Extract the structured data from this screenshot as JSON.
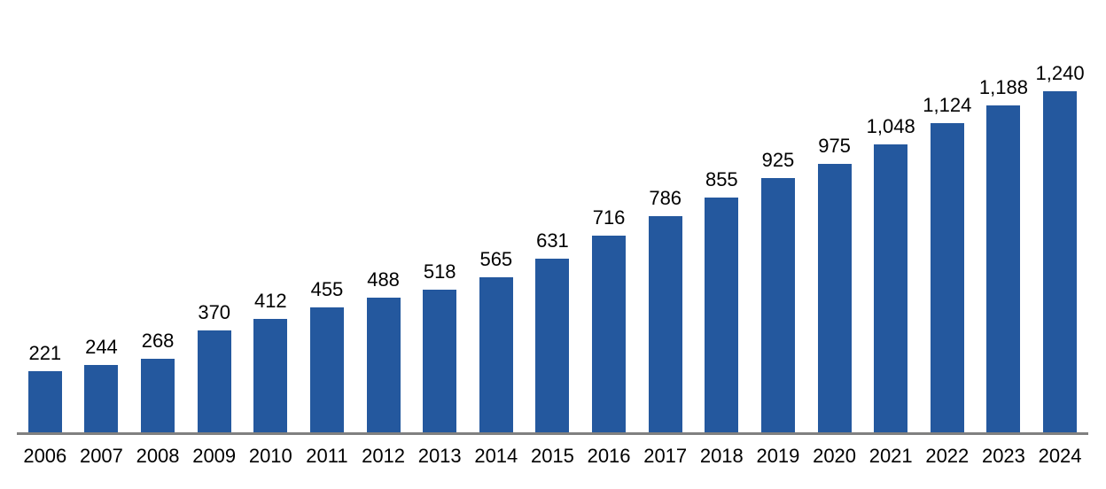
{
  "chart_data": {
    "type": "bar",
    "title": "",
    "xlabel": "",
    "ylabel": "",
    "categories": [
      "2006",
      "2007",
      "2008",
      "2009",
      "2010",
      "2011",
      "2012",
      "2013",
      "2014",
      "2015",
      "2016",
      "2017",
      "2018",
      "2019",
      "2020",
      "2021",
      "2022",
      "2023",
      "2024"
    ],
    "values": [
      221,
      244,
      268,
      370,
      412,
      455,
      488,
      518,
      565,
      631,
      716,
      786,
      855,
      925,
      975,
      1048,
      1124,
      1188,
      1240
    ],
    "value_labels": [
      "221",
      "244",
      "268",
      "370",
      "412",
      "455",
      "488",
      "518",
      "565",
      "631",
      "716",
      "786",
      "855",
      "925",
      "975",
      "1,048",
      "1,124",
      "1,188",
      "1,240"
    ],
    "ylim": [
      0,
      1240
    ],
    "grid": false,
    "legend": "none",
    "data_labels_position": "outside-end",
    "bar_color": "#24589E",
    "axis_line_color": "#808080",
    "label_color": "#000000"
  }
}
